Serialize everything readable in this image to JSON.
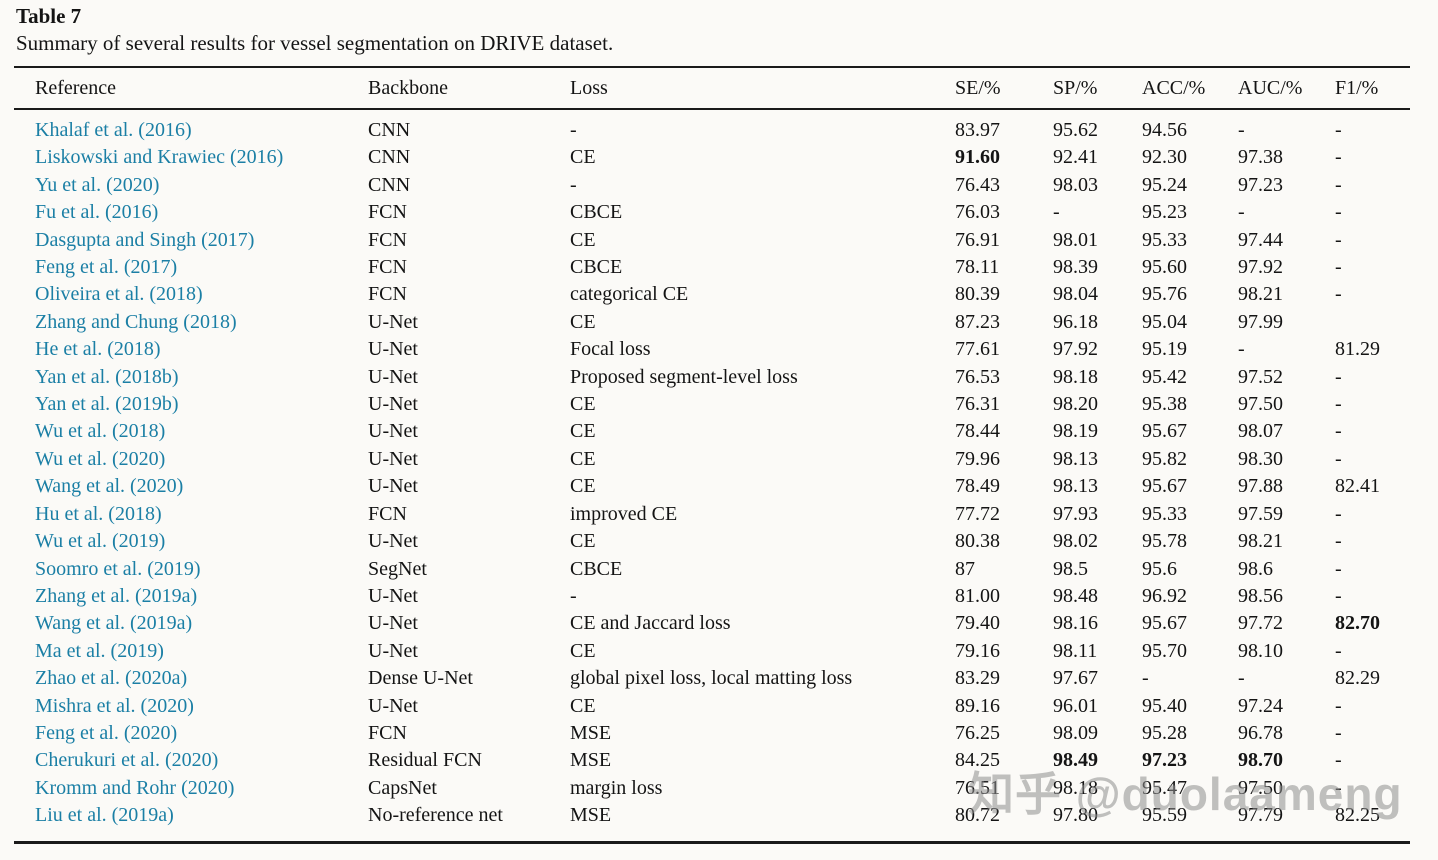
{
  "caption": {
    "label": "Table 7",
    "text": "Summary of several results for vessel segmentation on DRIVE dataset."
  },
  "watermark": {
    "text": "知乎 @duolaameng"
  },
  "colors": {
    "link_teal": "#1b7fa5",
    "text": "#141414",
    "rule": "#1a1a1a",
    "watermark_gray": "#8f8f8f",
    "background": "#fbfaf7"
  },
  "table": {
    "columns": [
      "Reference",
      "Backbone",
      "Loss",
      "SE/%",
      "SP/%",
      "ACC/%",
      "AUC/%",
      "F1/%"
    ],
    "fields": [
      "reference",
      "backbone",
      "loss",
      "se",
      "sp",
      "acc",
      "auc",
      "f1"
    ],
    "rows": [
      {
        "reference": "Khalaf et al. (2016)",
        "backbone": "CNN",
        "loss": "-",
        "se": "83.97",
        "sp": "95.62",
        "acc": "94.56",
        "auc": "-",
        "f1": "-",
        "bold": []
      },
      {
        "reference": "Liskowski and Krawiec (2016)",
        "backbone": "CNN",
        "loss": "CE",
        "se": "91.60",
        "sp": "92.41",
        "acc": "92.30",
        "auc": "97.38",
        "f1": "-",
        "bold": [
          "se"
        ]
      },
      {
        "reference": "Yu et al. (2020)",
        "backbone": "CNN",
        "loss": "-",
        "se": "76.43",
        "sp": "98.03",
        "acc": "95.24",
        "auc": "97.23",
        "f1": "-",
        "bold": []
      },
      {
        "reference": "Fu et al. (2016)",
        "backbone": "FCN",
        "loss": "CBCE",
        "se": "76.03",
        "sp": "-",
        "acc": "95.23",
        "auc": "-",
        "f1": "-",
        "bold": []
      },
      {
        "reference": "Dasgupta and Singh (2017)",
        "backbone": "FCN",
        "loss": "CE",
        "se": "76.91",
        "sp": "98.01",
        "acc": "95.33",
        "auc": "97.44",
        "f1": "-",
        "bold": []
      },
      {
        "reference": "Feng et al. (2017)",
        "backbone": "FCN",
        "loss": "CBCE",
        "se": "78.11",
        "sp": "98.39",
        "acc": "95.60",
        "auc": "97.92",
        "f1": "-",
        "bold": []
      },
      {
        "reference": "Oliveira et al. (2018)",
        "backbone": "FCN",
        "loss": "categorical CE",
        "se": "80.39",
        "sp": "98.04",
        "acc": "95.76",
        "auc": "98.21",
        "f1": "-",
        "bold": []
      },
      {
        "reference": "Zhang and Chung (2018)",
        "backbone": "U-Net",
        "loss": "CE",
        "se": "87.23",
        "sp": "96.18",
        "acc": "95.04",
        "auc": "97.99",
        "f1": "",
        "bold": []
      },
      {
        "reference": "He et al. (2018)",
        "backbone": "U-Net",
        "loss": "Focal loss",
        "se": "77.61",
        "sp": "97.92",
        "acc": "95.19",
        "auc": "-",
        "f1": "81.29",
        "bold": []
      },
      {
        "reference": "Yan et al. (2018b)",
        "backbone": "U-Net",
        "loss": "Proposed segment-level loss",
        "se": "76.53",
        "sp": "98.18",
        "acc": "95.42",
        "auc": "97.52",
        "f1": "-",
        "bold": []
      },
      {
        "reference": "Yan et al. (2019b)",
        "backbone": "U-Net",
        "loss": "CE",
        "se": "76.31",
        "sp": "98.20",
        "acc": "95.38",
        "auc": "97.50",
        "f1": "-",
        "bold": []
      },
      {
        "reference": "Wu et al. (2018)",
        "backbone": "U-Net",
        "loss": "CE",
        "se": "78.44",
        "sp": "98.19",
        "acc": "95.67",
        "auc": "98.07",
        "f1": "-",
        "bold": []
      },
      {
        "reference": "Wu et al. (2020)",
        "backbone": "U-Net",
        "loss": "CE",
        "se": "79.96",
        "sp": "98.13",
        "acc": "95.82",
        "auc": "98.30",
        "f1": "-",
        "bold": []
      },
      {
        "reference": "Wang et al. (2020)",
        "backbone": "U-Net",
        "loss": "CE",
        "se": "78.49",
        "sp": "98.13",
        "acc": "95.67",
        "auc": "97.88",
        "f1": "82.41",
        "bold": []
      },
      {
        "reference": "Hu et al. (2018)",
        "backbone": "FCN",
        "loss": "improved CE",
        "se": "77.72",
        "sp": "97.93",
        "acc": "95.33",
        "auc": "97.59",
        "f1": "-",
        "bold": []
      },
      {
        "reference": "Wu et al. (2019)",
        "backbone": "U-Net",
        "loss": "CE",
        "se": "80.38",
        "sp": "98.02",
        "acc": "95.78",
        "auc": "98.21",
        "f1": "-",
        "bold": []
      },
      {
        "reference": "Soomro et al. (2019)",
        "backbone": "SegNet",
        "loss": "CBCE",
        "se": "87",
        "sp": "98.5",
        "acc": "95.6",
        "auc": "98.6",
        "f1": "-",
        "bold": []
      },
      {
        "reference": "Zhang et al. (2019a)",
        "backbone": "U-Net",
        "loss": "-",
        "se": "81.00",
        "sp": "98.48",
        "acc": "96.92",
        "auc": "98.56",
        "f1": "-",
        "bold": []
      },
      {
        "reference": "Wang et al. (2019a)",
        "backbone": "U-Net",
        "loss": "CE and Jaccard loss",
        "se": "79.40",
        "sp": "98.16",
        "acc": "95.67",
        "auc": "97.72",
        "f1": "82.70",
        "bold": [
          "f1"
        ]
      },
      {
        "reference": "Ma et al. (2019)",
        "backbone": "U-Net",
        "loss": "CE",
        "se": "79.16",
        "sp": "98.11",
        "acc": "95.70",
        "auc": "98.10",
        "f1": "-",
        "bold": []
      },
      {
        "reference": "Zhao et al. (2020a)",
        "backbone": "Dense U-Net",
        "loss": "global pixel loss, local matting loss",
        "se": "83.29",
        "sp": "97.67",
        "acc": "-",
        "auc": "-",
        "f1": "82.29",
        "bold": []
      },
      {
        "reference": "Mishra et al. (2020)",
        "backbone": "U-Net",
        "loss": "CE",
        "se": "89.16",
        "sp": "96.01",
        "acc": "95.40",
        "auc": "97.24",
        "f1": "-",
        "bold": []
      },
      {
        "reference": "Feng et al. (2020)",
        "backbone": "FCN",
        "loss": "MSE",
        "se": "76.25",
        "sp": "98.09",
        "acc": "95.28",
        "auc": "96.78",
        "f1": "-",
        "bold": []
      },
      {
        "reference": "Cherukuri et al. (2020)",
        "backbone": "Residual FCN",
        "loss": "MSE",
        "se": "84.25",
        "sp": "98.49",
        "acc": "97.23",
        "auc": "98.70",
        "f1": "-",
        "bold": [
          "sp",
          "acc",
          "auc"
        ]
      },
      {
        "reference": "Kromm and Rohr (2020)",
        "backbone": "CapsNet",
        "loss": "margin loss",
        "se": "76.51",
        "sp": "98.18",
        "acc": "95.47",
        "auc": "97.50",
        "f1": "-",
        "bold": []
      },
      {
        "reference": "Liu et al. (2019a)",
        "backbone": "No-reference net",
        "loss": "MSE",
        "se": "80.72",
        "sp": "97.80",
        "acc": "95.59",
        "auc": "97.79",
        "f1": "82.25",
        "bold": []
      }
    ]
  }
}
